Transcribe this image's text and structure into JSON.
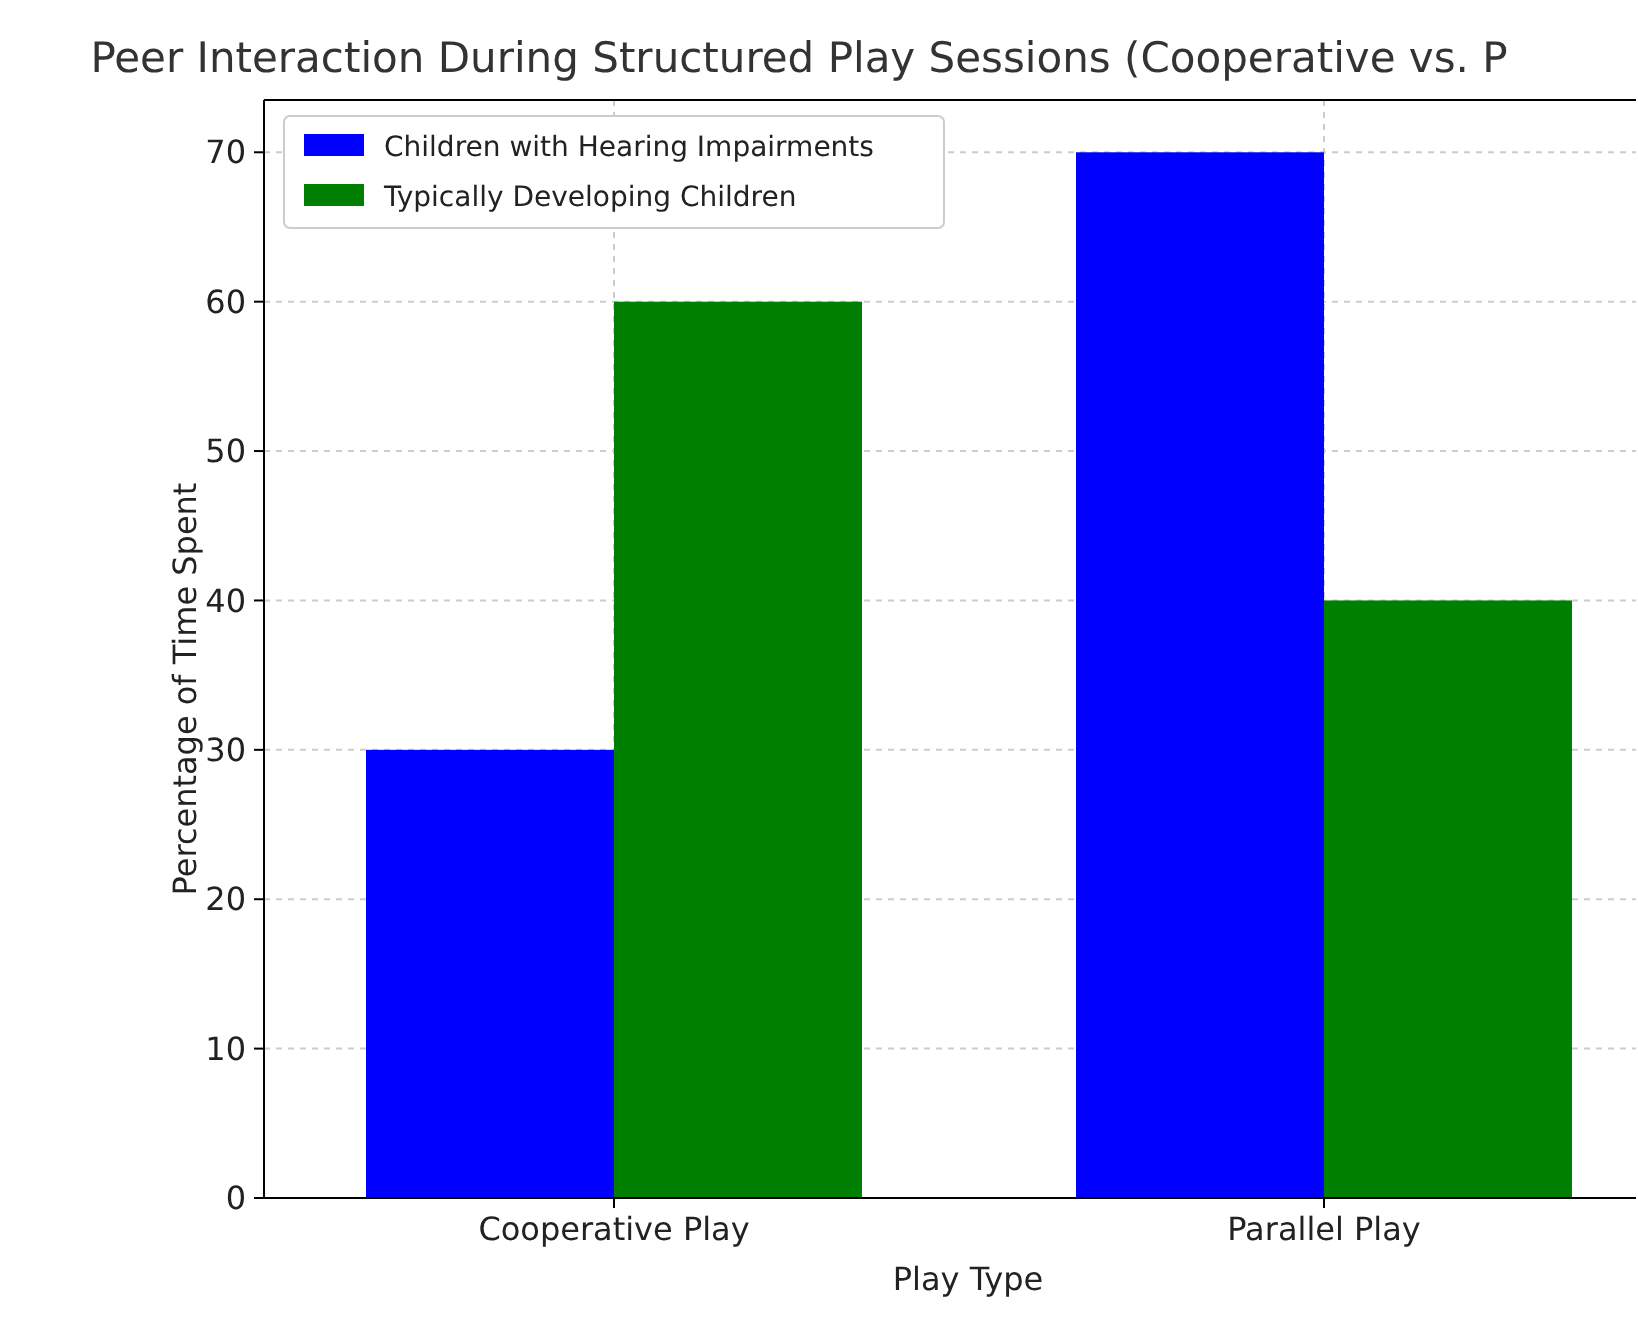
{
  "chart_data": {
    "type": "bar",
    "title": "Peer Interaction During Structured Play Sessions (Cooperative vs. P",
    "xlabel": "Play Type",
    "ylabel": "Percentage of Time Spent",
    "categories": [
      "Cooperative Play",
      "Parallel Play"
    ],
    "series": [
      {
        "name": "Children with Hearing Impairments",
        "color": "#0000ff",
        "values": [
          30,
          70
        ]
      },
      {
        "name": "Typically Developing Children",
        "color": "#008000",
        "values": [
          60,
          40
        ]
      }
    ],
    "ylim": [
      0,
      73.5
    ],
    "yticks": [
      0,
      10,
      20,
      30,
      40,
      50,
      60,
      70
    ],
    "grid": true,
    "legend": "top left"
  }
}
